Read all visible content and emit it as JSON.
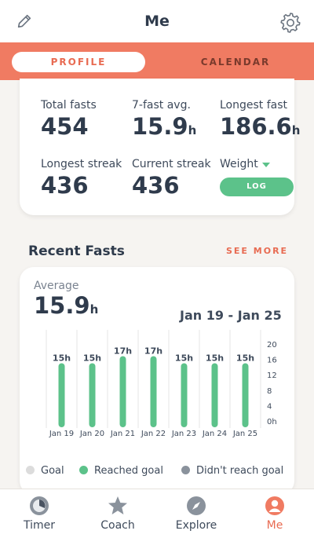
{
  "header": {
    "title": "Me",
    "edit_icon": "pencil-icon",
    "settings_icon": "gear-icon"
  },
  "tabs": {
    "profile": "PROFILE",
    "calendar": "CALENDAR",
    "active": "profile"
  },
  "stats": {
    "total_fasts": {
      "label": "Total fasts",
      "value": "454"
    },
    "seven_fast_avg": {
      "label": "7-fast avg.",
      "value": "15.9",
      "unit": "h"
    },
    "longest_fast": {
      "label": "Longest fast",
      "value": "186.6",
      "unit": "h"
    },
    "longest_streak": {
      "label": "Longest streak",
      "value": "436"
    },
    "current_streak": {
      "label": "Current streak",
      "value": "436"
    },
    "weight": {
      "label": "Weight",
      "log_label": "LOG"
    }
  },
  "recent": {
    "title": "Recent Fasts",
    "see_more": "SEE MORE",
    "average_label": "Average",
    "average_value": "15.9",
    "average_unit": "h",
    "date_range": "Jan 19 - Jan 25"
  },
  "chart_data": {
    "type": "bar",
    "categories": [
      "Jan 19",
      "Jan 20",
      "Jan 21",
      "Jan 22",
      "Jan 23",
      "Jan 24",
      "Jan 25"
    ],
    "values": [
      15,
      15,
      17,
      17,
      15,
      15,
      15
    ],
    "labels": [
      "15h",
      "15h",
      "17h",
      "17h",
      "15h",
      "15h",
      "15h"
    ],
    "y_ticks": [
      "20",
      "16",
      "12",
      "8",
      "4",
      "0h"
    ],
    "ylim": [
      0,
      20
    ],
    "bar_color": "#5cc28a"
  },
  "legend": [
    {
      "label": "Goal",
      "color": "#dcdcdc"
    },
    {
      "label": "Reached goal",
      "color": "#5cc28a"
    },
    {
      "label": "Didn't reach goal",
      "color": "#8a929c"
    }
  ],
  "nav": {
    "items": [
      {
        "label": "Timer",
        "icon": "timer-icon"
      },
      {
        "label": "Coach",
        "icon": "star-icon"
      },
      {
        "label": "Explore",
        "icon": "compass-icon"
      },
      {
        "label": "Me",
        "icon": "profile-icon"
      }
    ],
    "active": "Me"
  },
  "colors": {
    "accent": "#f07b62",
    "accent_text": "#e86b52",
    "success": "#5cc28a",
    "text": "#2f3b4c"
  }
}
